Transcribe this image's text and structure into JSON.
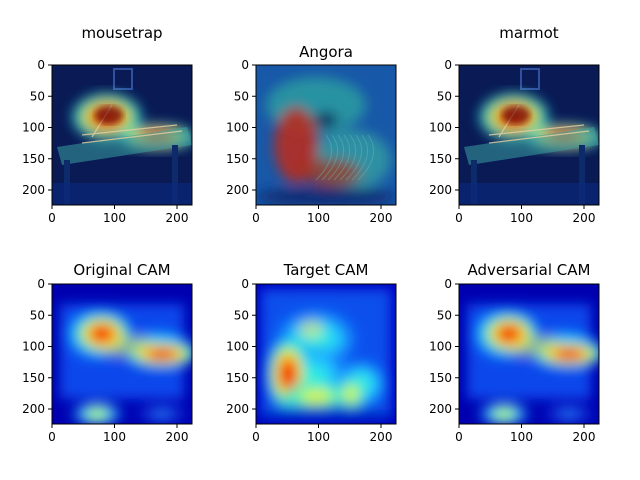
{
  "panels": [
    {
      "title": "mousetrap",
      "kind": "photo-overlay-mousetrap",
      "xticks": [
        "0",
        "100",
        "200"
      ],
      "yticks": [
        "0",
        "50",
        "100",
        "150",
        "200"
      ]
    },
    {
      "title": "Angora",
      "kind": "photo-overlay-angora",
      "xticks": [
        "0",
        "100",
        "200"
      ],
      "yticks": [
        "0",
        "50",
        "100",
        "150",
        "200"
      ]
    },
    {
      "title": "marmot",
      "kind": "photo-overlay-mousetrap",
      "xticks": [
        "0",
        "100",
        "200"
      ],
      "yticks": [
        "0",
        "50",
        "100",
        "150",
        "200"
      ]
    },
    {
      "title": "Original CAM",
      "kind": "cam-original",
      "xticks": [
        "0",
        "100",
        "200"
      ],
      "yticks": [
        "0",
        "50",
        "100",
        "150",
        "200"
      ]
    },
    {
      "title": "Target CAM",
      "kind": "cam-target",
      "xticks": [
        "0",
        "100",
        "200"
      ],
      "yticks": [
        "0",
        "50",
        "100",
        "150",
        "200"
      ]
    },
    {
      "title": "Adversarial CAM",
      "kind": "cam-original",
      "xticks": [
        "0",
        "100",
        "200"
      ],
      "yticks": [
        "0",
        "50",
        "100",
        "150",
        "200"
      ]
    }
  ],
  "axis": {
    "xlim": [
      0,
      224
    ],
    "ylim": [
      224,
      0
    ],
    "xtick_values": [
      0,
      100,
      200
    ],
    "ytick_values": [
      0,
      50,
      100,
      150,
      200
    ]
  },
  "colormap": "jet"
}
